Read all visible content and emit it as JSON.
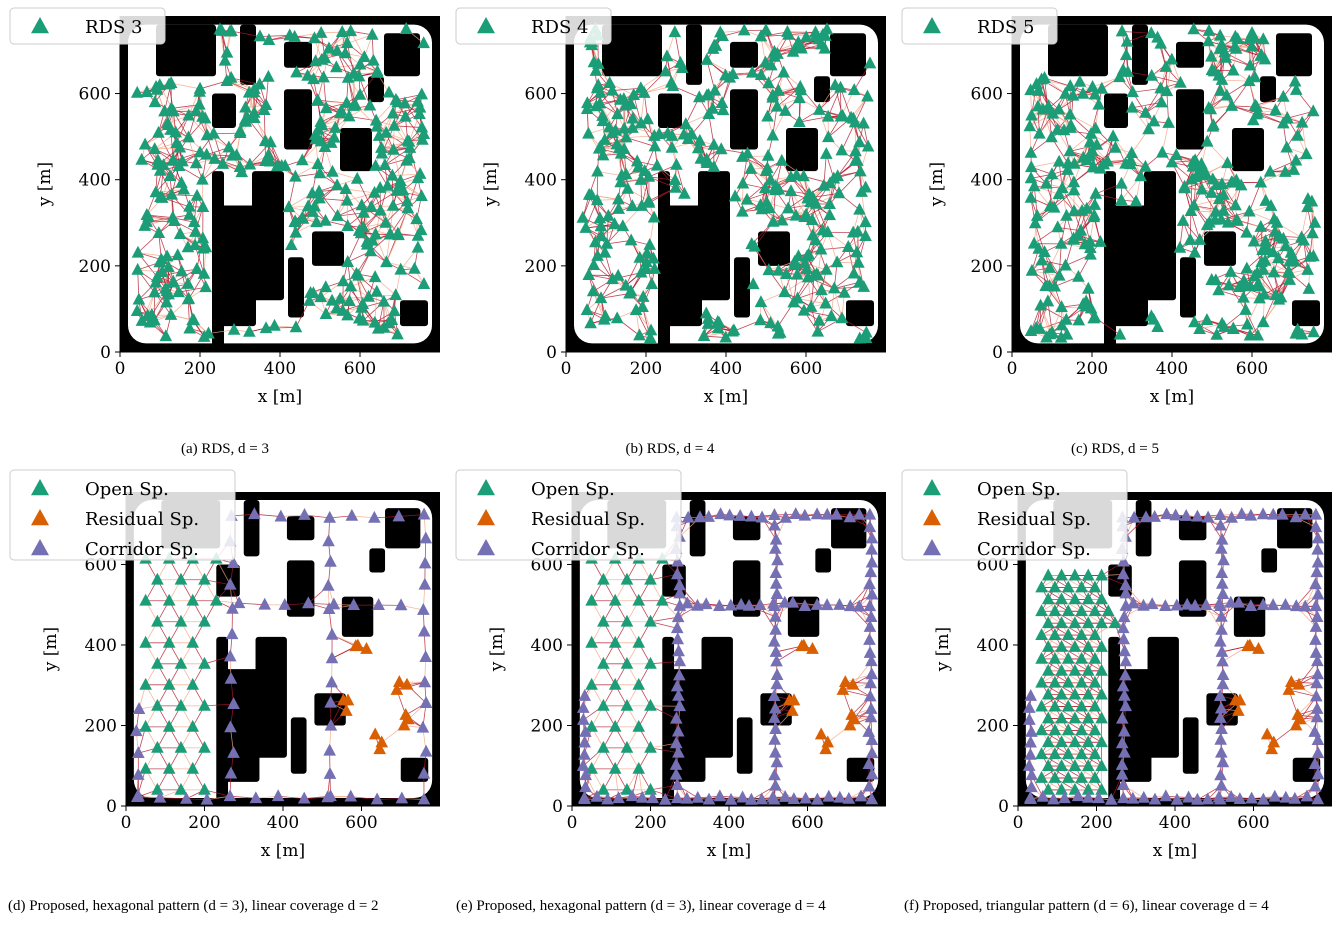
{
  "figure": {
    "captions": [
      "(a) RDS, d = 3",
      "(b) RDS, d = 4",
      "(c) RDS, d = 5",
      "(d) Proposed, hexagonal pattern (d = 3), linear coverage d = 2",
      "(e) Proposed, hexagonal pattern (d = 3), linear coverage d = 4",
      "(f) Proposed, triangular pattern (d = 6), linear coverage d = 4"
    ]
  },
  "colors": {
    "open": "#1b9e77",
    "residual": "#d95f02",
    "corridor": "#7570b3",
    "link_dark": "#b2182b",
    "link_light": "#f4a582",
    "obstacle": "#000000",
    "free_space": "#ffffff"
  },
  "chart_data": [
    {
      "type": "scatter",
      "xlabel": "x [m]",
      "ylabel": "y [m]",
      "xlim": [
        0,
        800
      ],
      "ylim": [
        0,
        780
      ],
      "xticks": [
        0,
        200,
        400,
        600
      ],
      "yticks": [
        0,
        200,
        400,
        600
      ],
      "legend": {
        "placement": "top-left",
        "entries": [
          {
            "label": "RDS 3",
            "color": "#1b9e77"
          }
        ]
      },
      "series": [
        {
          "name": "RDS 3",
          "marker": "triangle",
          "color": "#1b9e77",
          "generator": "random",
          "count": 330,
          "seed": 3,
          "link_density": 3
        }
      ]
    },
    {
      "type": "scatter",
      "xlabel": "x [m]",
      "ylabel": "y [m]",
      "xlim": [
        0,
        800
      ],
      "ylim": [
        0,
        780
      ],
      "xticks": [
        0,
        200,
        400,
        600
      ],
      "yticks": [
        0,
        200,
        400,
        600
      ],
      "legend": {
        "placement": "top-left",
        "entries": [
          {
            "label": "RDS 4",
            "color": "#1b9e77"
          }
        ]
      },
      "series": [
        {
          "name": "RDS 4",
          "marker": "triangle",
          "color": "#1b9e77",
          "generator": "random",
          "count": 330,
          "seed": 4,
          "link_density": 4
        }
      ]
    },
    {
      "type": "scatter",
      "xlabel": "x [m]",
      "ylabel": "y [m]",
      "xlim": [
        0,
        800
      ],
      "ylim": [
        0,
        780
      ],
      "xticks": [
        0,
        200,
        400,
        600
      ],
      "yticks": [
        0,
        200,
        400,
        600
      ],
      "legend": {
        "placement": "top-left",
        "entries": [
          {
            "label": "RDS 5",
            "color": "#1b9e77"
          }
        ]
      },
      "series": [
        {
          "name": "RDS 5",
          "marker": "triangle",
          "color": "#1b9e77",
          "generator": "random",
          "count": 330,
          "seed": 5,
          "link_density": 5
        }
      ]
    },
    {
      "type": "scatter",
      "xlabel": "x [m]",
      "ylabel": "y [m]",
      "xlim": [
        0,
        800
      ],
      "ylim": [
        0,
        780
      ],
      "xticks": [
        0,
        200,
        400,
        600
      ],
      "yticks": [
        0,
        200,
        400,
        600
      ],
      "legend": {
        "placement": "top-left",
        "entries": [
          {
            "label": "Open Sp.",
            "color": "#1b9e77"
          },
          {
            "label": "Residual Sp.",
            "color": "#d95f02"
          },
          {
            "label": "Corridor Sp.",
            "color": "#7570b3"
          }
        ]
      },
      "series": [
        {
          "name": "Open Sp.",
          "marker": "triangle",
          "color": "#1b9e77",
          "generator": "hexagonal",
          "spacing": 60
        },
        {
          "name": "Residual Sp.",
          "marker": "triangle",
          "color": "#d95f02",
          "generator": "residual"
        },
        {
          "name": "Corridor Sp.",
          "marker": "triangle",
          "color": "#7570b3",
          "generator": "corridor",
          "spacing": 55
        }
      ]
    },
    {
      "type": "scatter",
      "xlabel": "x [m]",
      "ylabel": "y [m]",
      "xlim": [
        0,
        800
      ],
      "ylim": [
        0,
        780
      ],
      "xticks": [
        0,
        200,
        400,
        600
      ],
      "yticks": [
        0,
        200,
        400,
        600
      ],
      "legend": {
        "placement": "top-left",
        "entries": [
          {
            "label": "Open Sp.",
            "color": "#1b9e77"
          },
          {
            "label": "Residual Sp.",
            "color": "#d95f02"
          },
          {
            "label": "Corridor Sp.",
            "color": "#7570b3"
          }
        ]
      },
      "series": [
        {
          "name": "Open Sp.",
          "marker": "triangle",
          "color": "#1b9e77",
          "generator": "hexagonal",
          "spacing": 60
        },
        {
          "name": "Residual Sp.",
          "marker": "triangle",
          "color": "#d95f02",
          "generator": "residual"
        },
        {
          "name": "Corridor Sp.",
          "marker": "triangle",
          "color": "#7570b3",
          "generator": "corridor",
          "spacing": 27
        }
      ]
    },
    {
      "type": "scatter",
      "xlabel": "x [m]",
      "ylabel": "y [m]",
      "xlim": [
        0,
        800
      ],
      "ylim": [
        0,
        780
      ],
      "xticks": [
        0,
        200,
        400,
        600
      ],
      "yticks": [
        0,
        200,
        400,
        600
      ],
      "legend": {
        "placement": "top-left",
        "entries": [
          {
            "label": "Open Sp.",
            "color": "#1b9e77"
          },
          {
            "label": "Residual Sp.",
            "color": "#d95f02"
          },
          {
            "label": "Corridor Sp.",
            "color": "#7570b3"
          }
        ]
      },
      "series": [
        {
          "name": "Open Sp.",
          "marker": "triangle",
          "color": "#1b9e77",
          "generator": "triangular",
          "spacing": 34
        },
        {
          "name": "Residual Sp.",
          "marker": "triangle",
          "color": "#d95f02",
          "generator": "residual"
        },
        {
          "name": "Corridor Sp.",
          "marker": "triangle",
          "color": "#7570b3",
          "generator": "corridor",
          "spacing": 27
        }
      ]
    }
  ]
}
